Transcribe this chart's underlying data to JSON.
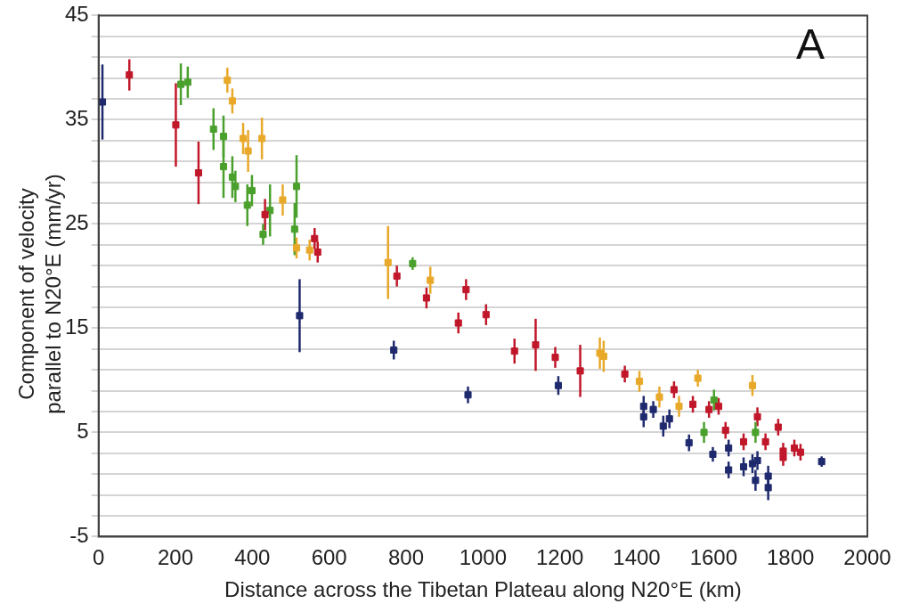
{
  "chart_data": {
    "type": "scatter",
    "xlabel": "Distance across the Tibetan Plateau along N20°E (km)",
    "ylabel": "Component of velocity parallel to N20°E (mm/yr)",
    "annotations": [
      "A"
    ],
    "xlim": [
      0,
      2000
    ],
    "xticks": [
      0,
      200,
      400,
      600,
      800,
      1000,
      1200,
      1400,
      1600,
      1800,
      2000
    ],
    "ylim": [
      -5,
      45
    ],
    "yticks": [
      -5,
      {
        "value": -3,
        "label": null
      },
      {
        "value": -1,
        "label": null
      },
      {
        "value": 1,
        "label": null
      },
      {
        "value": 3,
        "label": null
      },
      5,
      {
        "value": 7,
        "label": null
      },
      {
        "value": 9,
        "label": null
      },
      {
        "value": 11,
        "label": null
      },
      {
        "value": 13,
        "label": null
      },
      15,
      {
        "value": 17,
        "label": null
      },
      {
        "value": 19,
        "label": null
      },
      {
        "value": 21,
        "label": null
      },
      {
        "value": 23,
        "label": null
      },
      25,
      {
        "value": 27,
        "label": null
      },
      {
        "value": 29,
        "label": null
      },
      {
        "value": 31,
        "label": null
      },
      {
        "value": 33,
        "label": null
      },
      35,
      {
        "value": 37,
        "label": null
      },
      {
        "value": 39,
        "label": null
      },
      {
        "value": 41,
        "label": null
      },
      {
        "value": 43,
        "label": null
      },
      45
    ],
    "grid": "y",
    "marker": "square",
    "series": [
      {
        "color": "#1f2a6e",
        "x": [
          10,
          523,
          768,
          961,
          1196,
          1418,
          1418,
          1443,
          1469,
          1485,
          1536,
          1598,
          1639,
          1639,
          1678,
          1701,
          1714,
          1709,
          1742,
          1742,
          1881
        ],
        "values": [
          36.7,
          16.2,
          12.9,
          8.6,
          9.5,
          7.5,
          6.5,
          7.2,
          5.6,
          6.3,
          4.0,
          2.9,
          3.5,
          1.4,
          1.7,
          2.0,
          2.3,
          0.4,
          0.8,
          -0.3,
          2.2
        ],
        "errors": [
          3.6,
          3.5,
          0.9,
          0.8,
          0.9,
          1,
          1,
          0.8,
          1,
          0.9,
          0.8,
          0.7,
          0.8,
          0.8,
          0.9,
          0.9,
          0.9,
          1,
          1,
          1.2,
          0.5
        ]
      },
      {
        "color": "#c0182a",
        "x": [
          80,
          201,
          260,
          433,
          562,
          570,
          776,
          853,
          956,
          936,
          1008,
          1082,
          1137,
          1188,
          1253,
          1369,
          1497,
          1546,
          1588,
          1613,
          1631,
          1678,
          1714,
          1735,
          1768,
          1781,
          1781,
          1810,
          1826
        ],
        "values": [
          39.3,
          34.5,
          29.9,
          25.9,
          23.6,
          22.3,
          20,
          17.9,
          18.7,
          15.5,
          16.3,
          12.8,
          13.4,
          12.2,
          10.9,
          10.6,
          9.1,
          7.7,
          7.2,
          7.5,
          5.2,
          4.1,
          6.5,
          4.1,
          5.5,
          3.2,
          2.6,
          3.5,
          3.1
        ],
        "errors": [
          1.5,
          4,
          3,
          1.5,
          1,
          1,
          1,
          1,
          1,
          1,
          1,
          1.2,
          2.5,
          1,
          2.5,
          0.8,
          0.8,
          0.8,
          0.8,
          0.8,
          0.8,
          0.8,
          0.9,
          0.8,
          0.8,
          0.8,
          0.8,
          0.8,
          0.8
        ]
      },
      {
        "color": "#4aa02c",
        "x": [
          214,
          232,
          299,
          325,
          325,
          348,
          356,
          387,
          399,
          446,
          428,
          510,
          515,
          817,
          1601,
          1575,
          1709
        ],
        "values": [
          38.4,
          38.6,
          34.1,
          33.4,
          30.5,
          29.5,
          28.6,
          26.8,
          28.2,
          26.3,
          24,
          24.5,
          28.6,
          21.2,
          8.1,
          5.0,
          5.0
        ],
        "errors": [
          2,
          1.5,
          2,
          2,
          3,
          2,
          1.5,
          2,
          1.5,
          2.5,
          1,
          2.5,
          3,
          0.6,
          1,
          1,
          1
        ]
      },
      {
        "color": "#e8a92a",
        "x": [
          335,
          348,
          376,
          389,
          425,
          479,
          515,
          549,
          753,
          863,
          1304,
          1314,
          1407,
          1459,
          1510,
          1559,
          1701
        ],
        "values": [
          38.8,
          36.8,
          33.2,
          32,
          33.2,
          27.3,
          22.7,
          22.5,
          21.3,
          19.6,
          12.6,
          12.3,
          9.9,
          8.4,
          7.5,
          10.2,
          9.5
        ],
        "errors": [
          1.2,
          1.2,
          1.5,
          2,
          2,
          1.5,
          1,
          1,
          3.5,
          1.3,
          1.5,
          1.5,
          1,
          1,
          1,
          0.8,
          1
        ]
      }
    ]
  }
}
